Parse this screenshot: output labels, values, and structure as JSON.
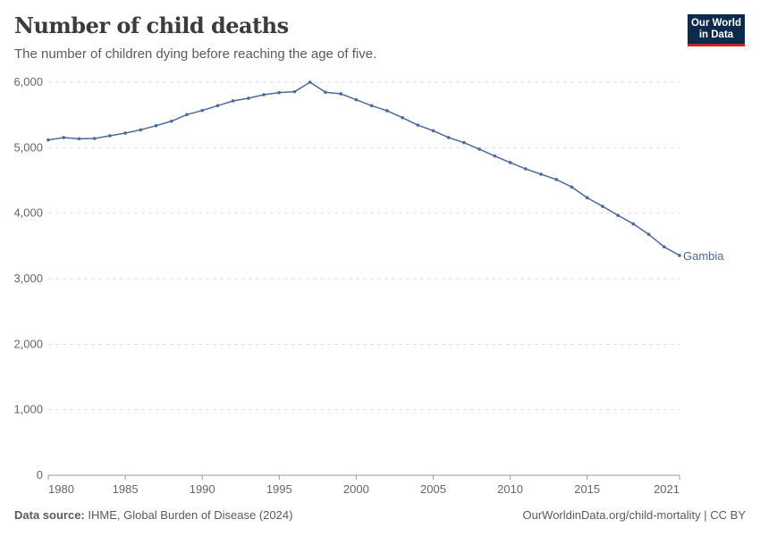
{
  "header": {
    "title": "Number of child deaths",
    "subtitle": "The number of children dying before reaching the age of five.",
    "logo_text": "Our World in Data"
  },
  "footer": {
    "source_label": "Data source:",
    "source": "IHME, Global Burden of Disease (2024)",
    "link": "OurWorldinData.org/child-mortality | CC BY"
  },
  "chart_data": {
    "type": "line",
    "title": "Number of child deaths",
    "ylim": [
      0,
      6000
    ],
    "xlim": [
      1980,
      2021
    ],
    "yticks": [
      0,
      1000,
      2000,
      3000,
      4000,
      5000,
      6000
    ],
    "ytick_labels": [
      "0",
      "1,000",
      "2,000",
      "3,000",
      "4,000",
      "5,000",
      "6,000"
    ],
    "xticks": [
      1980,
      1985,
      1990,
      1995,
      2000,
      2005,
      2010,
      2015,
      2021
    ],
    "xtick_labels": [
      "1980",
      "1985",
      "1990",
      "1995",
      "2000",
      "2005",
      "2010",
      "2015",
      "2021"
    ],
    "grid": "horizontal dashed",
    "color": "#4c6a9c",
    "series": [
      {
        "name": "Gambia",
        "x": [
          1980,
          1981,
          1982,
          1983,
          1984,
          1985,
          1986,
          1987,
          1988,
          1989,
          1990,
          1991,
          1992,
          1993,
          1994,
          1995,
          1996,
          1997,
          1998,
          1999,
          2000,
          2001,
          2002,
          2003,
          2004,
          2005,
          2006,
          2007,
          2008,
          2009,
          2010,
          2011,
          2012,
          2013,
          2014,
          2015,
          2016,
          2017,
          2018,
          2019,
          2020,
          2021
        ],
        "values": [
          5118,
          5155,
          5136,
          5141,
          5182,
          5223,
          5273,
          5336,
          5405,
          5505,
          5568,
          5641,
          5714,
          5755,
          5809,
          5841,
          5855,
          6000,
          5846,
          5823,
          5732,
          5641,
          5564,
          5459,
          5345,
          5259,
          5155,
          5077,
          4977,
          4873,
          4773,
          4677,
          4595,
          4514,
          4400,
          4236,
          4105,
          3968,
          3836,
          3677,
          3486,
          3355
        ]
      }
    ]
  }
}
